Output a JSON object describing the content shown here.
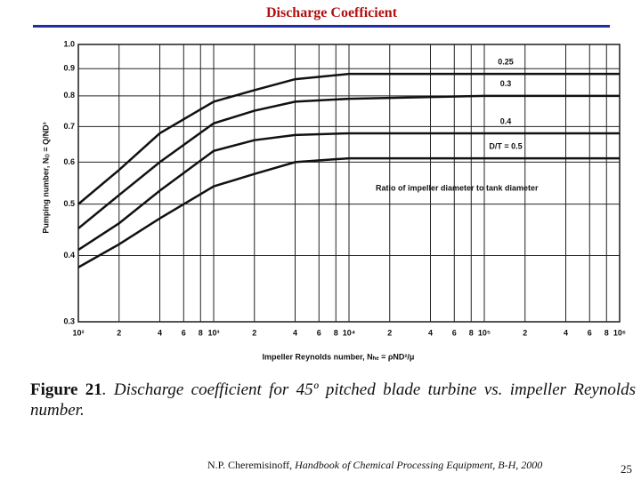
{
  "header": {
    "title": "Discharge Coefficient"
  },
  "chart_data": {
    "type": "line",
    "x_label": "Impeller Reynolds number, Nₕₑ = ρND²/μ",
    "y_label": "Pumping number, N₍₎ = Q/ND³",
    "annotation": "Ratio of impeller diameter to tank diameter",
    "xscale": "log",
    "yscale": "log",
    "grid": true,
    "x": [
      100,
      200,
      400,
      1000,
      2000,
      4000,
      10000,
      100000,
      1000000
    ],
    "series": [
      {
        "name": "0.25",
        "color": "#111111",
        "values": [
          0.5,
          0.58,
          0.68,
          0.78,
          0.82,
          0.86,
          0.88,
          0.88,
          0.88
        ]
      },
      {
        "name": "0.3",
        "color": "#111111",
        "values": [
          0.45,
          0.52,
          0.6,
          0.71,
          0.75,
          0.78,
          0.79,
          0.8,
          0.8
        ]
      },
      {
        "name": "0.4",
        "color": "#111111",
        "values": [
          0.41,
          0.46,
          0.53,
          0.63,
          0.66,
          0.675,
          0.68,
          0.68,
          0.68
        ]
      },
      {
        "name": "D/T = 0.5",
        "color": "#111111",
        "values": [
          0.38,
          0.42,
          0.47,
          0.54,
          0.57,
          0.6,
          0.61,
          0.61,
          0.61
        ]
      }
    ],
    "xlim": [
      100,
      1000000
    ],
    "xticks": [
      {
        "value": 100,
        "label": "10²"
      },
      {
        "value": 200,
        "label": "2"
      },
      {
        "value": 400,
        "label": "4"
      },
      {
        "value": 600,
        "label": "6"
      },
      {
        "value": 800,
        "label": "8"
      },
      {
        "value": 1000,
        "label": "10³"
      },
      {
        "value": 2000,
        "label": "2"
      },
      {
        "value": 4000,
        "label": "4"
      },
      {
        "value": 6000,
        "label": "6"
      },
      {
        "value": 8000,
        "label": "8"
      },
      {
        "value": 10000,
        "label": "10⁴"
      },
      {
        "value": 20000,
        "label": "2"
      },
      {
        "value": 40000,
        "label": "4"
      },
      {
        "value": 60000,
        "label": "6"
      },
      {
        "value": 80000,
        "label": "8"
      },
      {
        "value": 100000,
        "label": "10⁵"
      },
      {
        "value": 200000,
        "label": "2"
      },
      {
        "value": 400000,
        "label": "4"
      },
      {
        "value": 600000,
        "label": "6"
      },
      {
        "value": 800000,
        "label": "8"
      },
      {
        "value": 1000000,
        "label": "10⁶"
      }
    ],
    "ylim": [
      0.3,
      1.0
    ],
    "yticks": [
      0.3,
      0.4,
      0.5,
      0.6,
      0.7,
      0.8,
      0.9,
      {
        "value": 1.0,
        "label": "1.0"
      }
    ]
  },
  "caption": {
    "label": "Figure 21",
    "text": ". Discharge coefficient for 45º pitched blade turbine vs. impeller Reynolds number."
  },
  "citation": {
    "author": "N.P. Cheremisinoff, ",
    "work": "Handbook of Chemical Processing Equipment, B-H, 2000"
  },
  "page_number": "25"
}
